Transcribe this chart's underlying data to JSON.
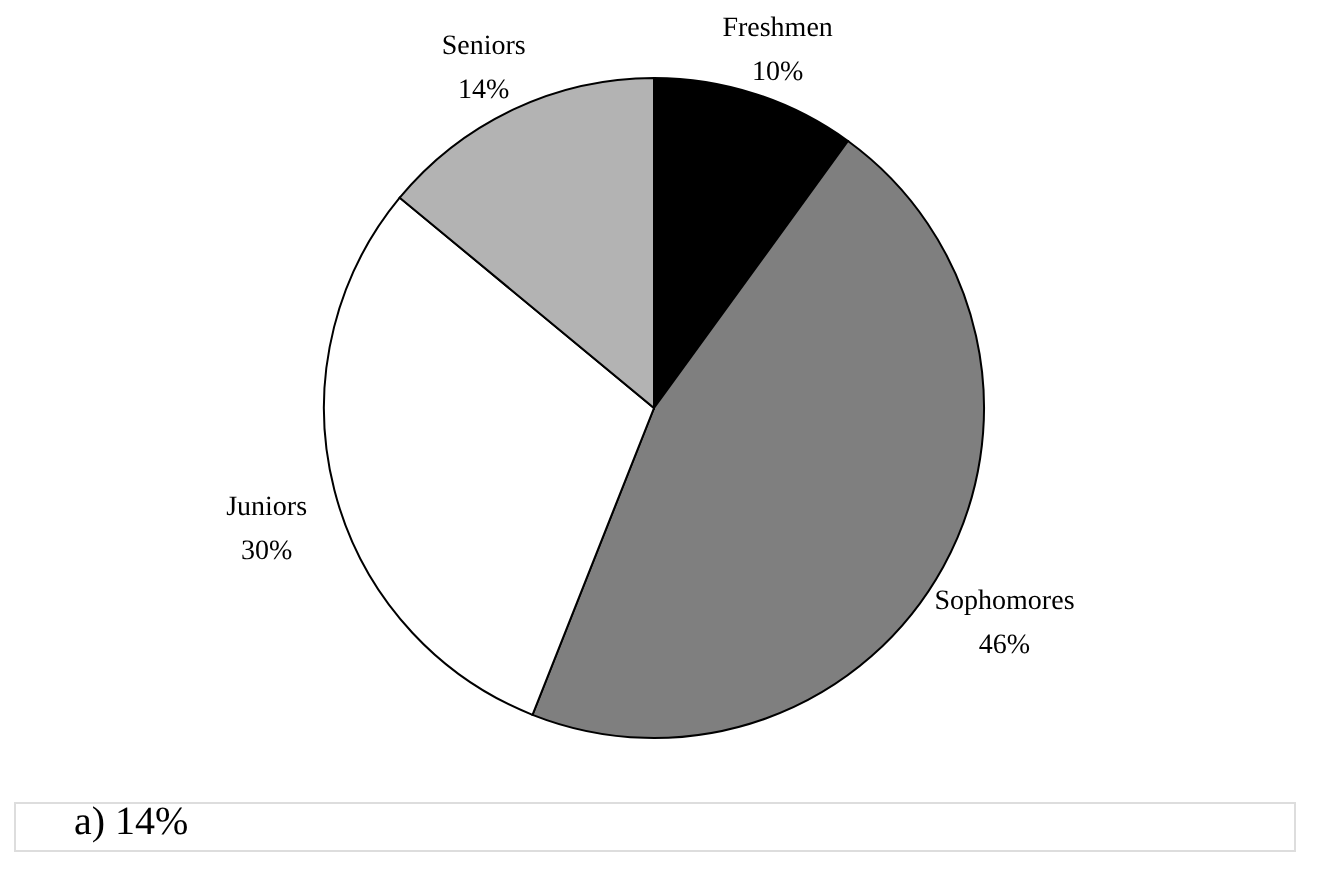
{
  "chart_data": {
    "type": "pie",
    "categories": [
      "Freshmen",
      "Sophomores",
      "Juniors",
      "Seniors"
    ],
    "values": [
      10,
      46,
      30,
      14
    ],
    "value_labels": [
      "10%",
      "46%",
      "30%",
      "14%"
    ],
    "colors": [
      "#000000",
      "#7f7f7f",
      "#ffffff",
      "#b3b3b3"
    ],
    "legend": false,
    "annotations": [
      "a)   14%"
    ]
  }
}
